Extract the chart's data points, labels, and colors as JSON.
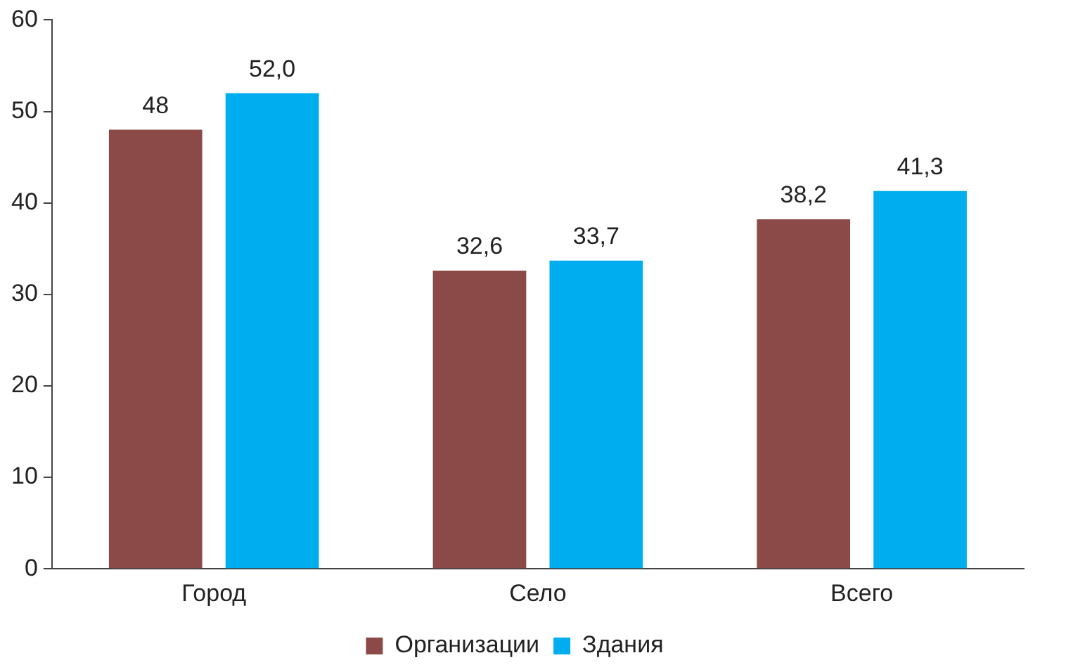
{
  "chart_data": {
    "type": "bar",
    "categories": [
      "Город",
      "Село",
      "Всего"
    ],
    "series": [
      {
        "name": "Организации",
        "color": "#8b4a47",
        "values": [
          48,
          32.6,
          38.2
        ],
        "value_labels": [
          "48",
          "32,6",
          "38,2"
        ]
      },
      {
        "name": "Здания",
        "color": "#00adef",
        "values": [
          52.0,
          33.7,
          41.3
        ],
        "value_labels": [
          "52,0",
          "33,7",
          "41,3"
        ]
      }
    ],
    "ylim": [
      0,
      60
    ],
    "yticks": [
      0,
      10,
      20,
      30,
      40,
      50,
      60
    ],
    "grid": false,
    "legend": "bottom"
  }
}
